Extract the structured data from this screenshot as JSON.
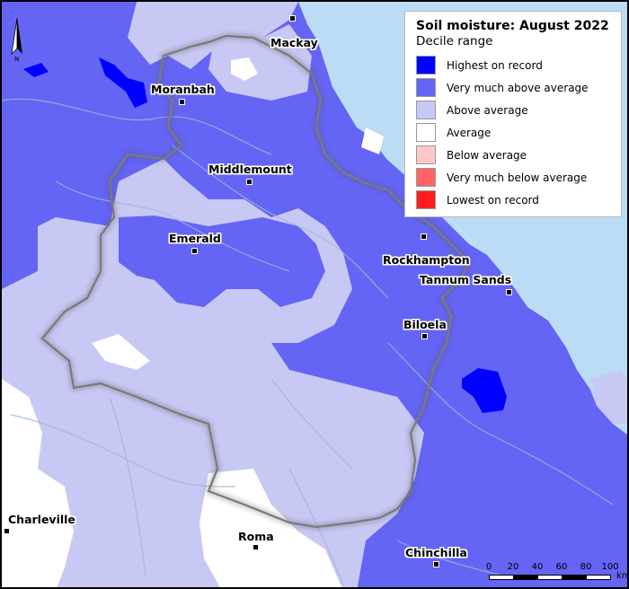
{
  "legend": {
    "title": "Soil moisture: August 2022",
    "subtitle": "Decile range",
    "items": [
      {
        "label": "Highest on record",
        "color": "#0000ff"
      },
      {
        "label": "Very much above average",
        "color": "#6464f5"
      },
      {
        "label": "Above average",
        "color": "#c8c8f5"
      },
      {
        "label": "Average",
        "color": "#ffffff"
      },
      {
        "label": "Below average",
        "color": "#ffc8c8"
      },
      {
        "label": "Very much below average",
        "color": "#ff6464"
      },
      {
        "label": "Lowest on record",
        "color": "#ff1e1e"
      }
    ]
  },
  "towns": [
    {
      "name": "Mackay"
    },
    {
      "name": "Moranbah"
    },
    {
      "name": "Middlemount"
    },
    {
      "name": "Emerald"
    },
    {
      "name": "Rockhampton"
    },
    {
      "name": "Tannum Sands"
    },
    {
      "name": "Biloela"
    },
    {
      "name": "Charleville"
    },
    {
      "name": "Roma"
    },
    {
      "name": "Chinchilla"
    }
  ],
  "north_arrow": {
    "label": "N"
  },
  "scale_bar": {
    "ticks": [
      "0",
      "20",
      "40",
      "60",
      "80",
      "100"
    ],
    "unit": "km"
  },
  "colors": {
    "ocean": "#bcdcf5",
    "river": "#9ab8d8",
    "border": "#7a7a7a"
  }
}
